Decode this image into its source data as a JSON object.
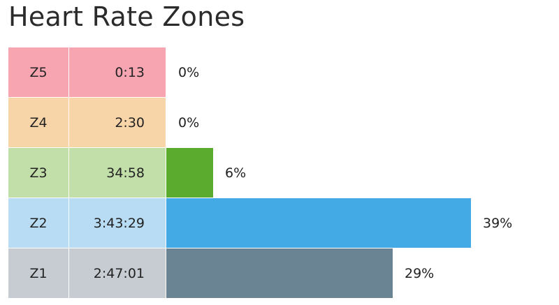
{
  "chart_data": {
    "type": "bar",
    "title": "Heart Rate Zones",
    "orientation": "horizontal",
    "zones": [
      {
        "label": "Z5",
        "time": "0:13",
        "percent_label": "0%",
        "value": 0,
        "cell_color": "#f8a5b2",
        "bar_color": "#f8a5b2"
      },
      {
        "label": "Z4",
        "time": "2:30",
        "percent_label": "0%",
        "value": 0,
        "cell_color": "#f8d5a8",
        "bar_color": "#f8d5a8"
      },
      {
        "label": "Z3",
        "time": "34:58",
        "percent_label": "6%",
        "value": 6,
        "cell_color": "#c2dfa9",
        "bar_color": "#5aab2e"
      },
      {
        "label": "Z2",
        "time": "3:43:29",
        "percent_label": "39%",
        "value": 39,
        "cell_color": "#b8dcf3",
        "bar_color": "#44aae5"
      },
      {
        "label": "Z1",
        "time": "2:47:01",
        "percent_label": "29%",
        "value": 29,
        "cell_color": "#c6ccd2",
        "bar_color": "#6b8494"
      }
    ]
  }
}
